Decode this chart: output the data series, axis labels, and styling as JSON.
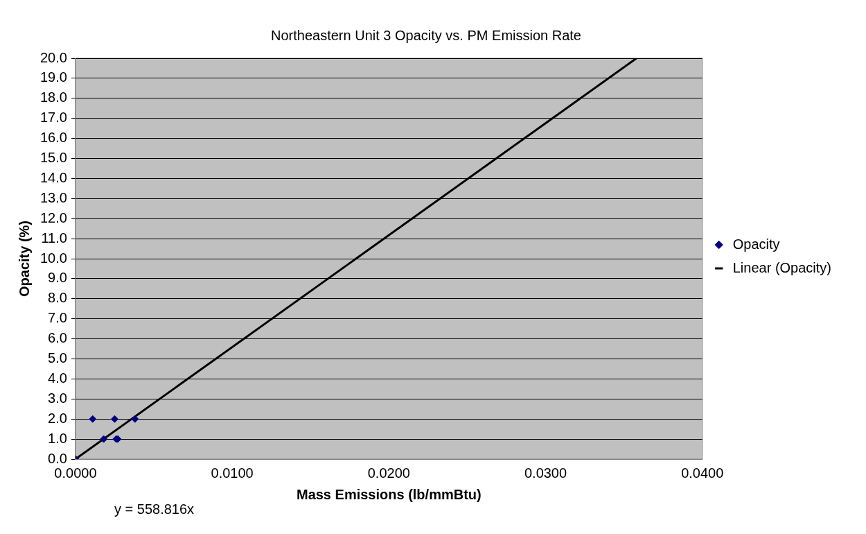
{
  "chart_data": {
    "type": "scatter",
    "title": "Northeastern Unit 3 Opacity vs. PM Emission Rate",
    "xlabel": "Mass Emissions (lb/mmBtu)",
    "ylabel": "Opacity (%)",
    "xlim": [
      0,
      0.04
    ],
    "xticks": [
      {
        "value": 0,
        "label": "0.0000"
      },
      {
        "value": 0.01,
        "label": "0.0100"
      },
      {
        "value": 0.02,
        "label": "0.0200"
      },
      {
        "value": 0.03,
        "label": "0.0300"
      },
      {
        "value": 0.04,
        "label": "0.0400"
      }
    ],
    "ylim": [
      0,
      20
    ],
    "yticks": [
      {
        "value": 0,
        "label": "0.0"
      },
      {
        "value": 1,
        "label": "1.0"
      },
      {
        "value": 2,
        "label": "2.0"
      },
      {
        "value": 3,
        "label": "3.0"
      },
      {
        "value": 4,
        "label": "4.0"
      },
      {
        "value": 5,
        "label": "5.0"
      },
      {
        "value": 6,
        "label": "6.0"
      },
      {
        "value": 7,
        "label": "7.0"
      },
      {
        "value": 8,
        "label": "8.0"
      },
      {
        "value": 9,
        "label": "9.0"
      },
      {
        "value": 10,
        "label": "10.0"
      },
      {
        "value": 11,
        "label": "11.0"
      },
      {
        "value": 12,
        "label": "12.0"
      },
      {
        "value": 13,
        "label": "13.0"
      },
      {
        "value": 14,
        "label": "14.0"
      },
      {
        "value": 15,
        "label": "15.0"
      },
      {
        "value": 16,
        "label": "16.0"
      },
      {
        "value": 17,
        "label": "17.0"
      },
      {
        "value": 18,
        "label": "18.0"
      },
      {
        "value": 19,
        "label": "19.0"
      },
      {
        "value": 20,
        "label": "20.0"
      }
    ],
    "series": [
      {
        "name": "Opacity",
        "color": "#000080",
        "marker": "diamond",
        "x": [
          0,
          0.0011,
          0.0018,
          0.0025,
          0.0026,
          0.0027,
          0.0038
        ],
        "values": [
          0,
          2,
          1,
          2,
          1,
          1,
          2
        ]
      },
      {
        "name": "Linear (Opacity)",
        "type": "line",
        "color": "#000000",
        "marker": "none",
        "line_style": "solid",
        "x": [
          0,
          0.0358
        ],
        "values": [
          0,
          20
        ]
      }
    ],
    "annotations": [
      "y = 558.816x"
    ],
    "grid": "y",
    "legend": "right"
  }
}
